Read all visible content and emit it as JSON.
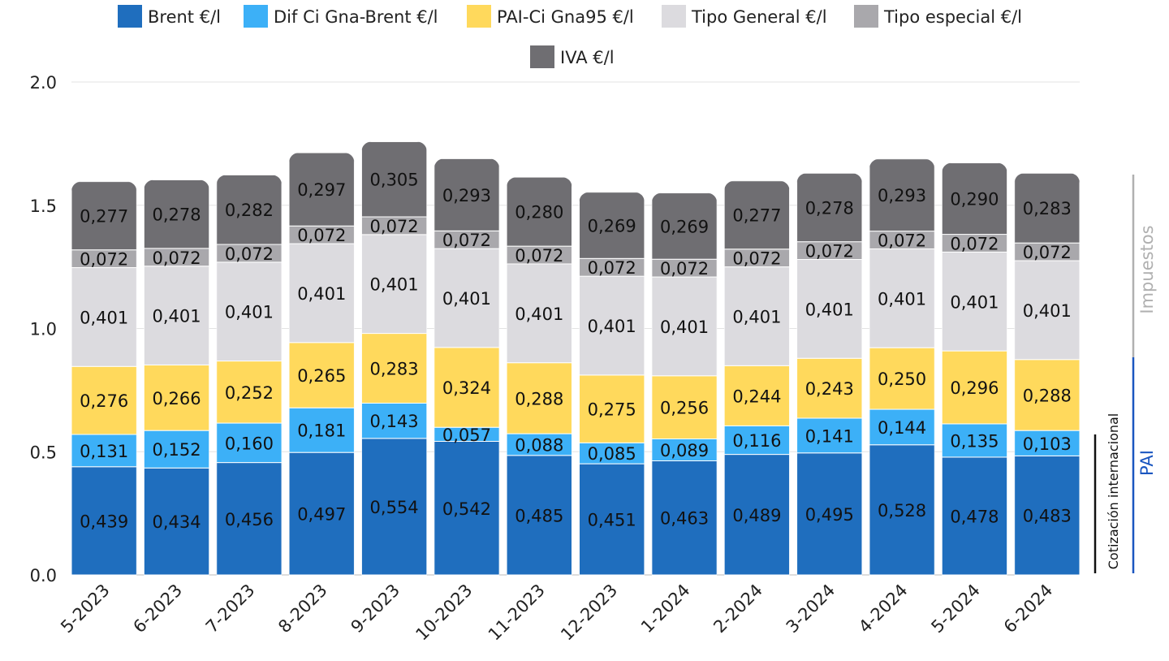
{
  "chart_data": {
    "type": "bar",
    "stacked": true,
    "categories": [
      "5-2023",
      "6-2023",
      "7-2023",
      "8-2023",
      "9-2023",
      "10-2023",
      "11-2023",
      "12-2023",
      "1-2024",
      "2-2024",
      "3-2024",
      "4-2024",
      "5-2024",
      "6-2024"
    ],
    "series": [
      {
        "name": "Brent €/l",
        "color": "#1f6ebe",
        "label_color": "#111111",
        "values": [
          0.439,
          0.434,
          0.456,
          0.497,
          0.554,
          0.542,
          0.485,
          0.451,
          0.463,
          0.489,
          0.495,
          0.528,
          0.478,
          0.483
        ]
      },
      {
        "name": "Dif Ci Gna-Brent €/l",
        "color": "#3cb0f7",
        "label_color": "#111111",
        "values": [
          0.131,
          0.152,
          0.16,
          0.181,
          0.143,
          0.057,
          0.088,
          0.085,
          0.089,
          0.116,
          0.141,
          0.144,
          0.135,
          0.103
        ]
      },
      {
        "name": "PAI-Ci Gna95 €/l",
        "color": "#ffd95c",
        "label_color": "#111111",
        "values": [
          0.276,
          0.266,
          0.252,
          0.265,
          0.283,
          0.324,
          0.288,
          0.275,
          0.256,
          0.244,
          0.243,
          0.25,
          0.296,
          0.288
        ]
      },
      {
        "name": "Tipo General €/l",
        "color": "#dcdbdf",
        "label_color": "#111111",
        "values": [
          0.401,
          0.401,
          0.401,
          0.401,
          0.401,
          0.401,
          0.401,
          0.401,
          0.401,
          0.401,
          0.401,
          0.401,
          0.401,
          0.401
        ]
      },
      {
        "name": "Tipo especial €/l",
        "color": "#a9a8ac",
        "label_color": "#111111",
        "values": [
          0.072,
          0.072,
          0.072,
          0.072,
          0.072,
          0.072,
          0.072,
          0.072,
          0.072,
          0.072,
          0.072,
          0.072,
          0.072,
          0.072
        ]
      },
      {
        "name": "IVA €/l",
        "color": "#6f6e72",
        "label_color": "#111111",
        "values": [
          0.277,
          0.278,
          0.282,
          0.297,
          0.305,
          0.293,
          0.28,
          0.269,
          0.269,
          0.277,
          0.278,
          0.293,
          0.29,
          0.283
        ]
      }
    ],
    "yticks": [
      "0.0",
      "0.5",
      "1.0",
      "1.5",
      "2.0"
    ],
    "ylim": [
      0,
      2.0
    ],
    "grid": true,
    "legend_position": "top",
    "annotations": [
      {
        "text": "Cotización internacional",
        "color": "#111111"
      },
      {
        "text": "PAI",
        "color": "#1a56c0"
      },
      {
        "text": "Impuestos",
        "color": "#b0b0b0"
      }
    ]
  }
}
